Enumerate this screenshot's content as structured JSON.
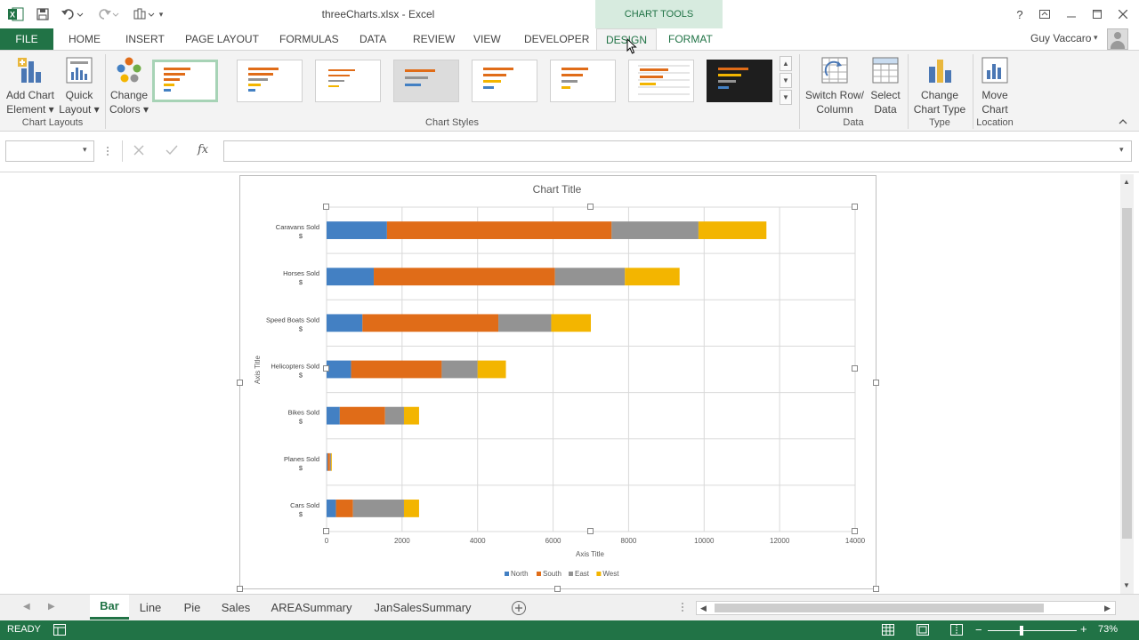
{
  "title_bar": {
    "document_title": "threeCharts.xlsx - Excel",
    "chart_tools_label": "CHART TOOLS",
    "help_label": "?",
    "app_icon": "excel-logo-icon"
  },
  "ribbon_tabs": [
    {
      "label": "FILE"
    },
    {
      "label": "HOME"
    },
    {
      "label": "INSERT"
    },
    {
      "label": "PAGE LAYOUT"
    },
    {
      "label": "FORMULAS"
    },
    {
      "label": "DATA"
    },
    {
      "label": "REVIEW"
    },
    {
      "label": "VIEW"
    },
    {
      "label": "DEVELOPER"
    },
    {
      "label": "DESIGN"
    },
    {
      "label": "FORMAT"
    }
  ],
  "user": {
    "name": "Guy Vaccaro"
  },
  "ribbon": {
    "add_chart_element": {
      "line1": "Add Chart",
      "line2": "Element ▾"
    },
    "quick_layout": {
      "line1": "Quick",
      "line2": "Layout ▾"
    },
    "change_colors": {
      "line1": "Change",
      "line2": "Colors ▾"
    },
    "switch_row_column": {
      "line1": "Switch Row/",
      "line2": "Column"
    },
    "select_data": {
      "line1": "Select",
      "line2": "Data"
    },
    "change_chart_type": {
      "line1": "Change",
      "line2": "Chart Type"
    },
    "move_chart": {
      "line1": "Move",
      "line2": "Chart"
    },
    "groups": {
      "chart_layouts": "Chart Layouts",
      "chart_styles": "Chart Styles",
      "data": "Data",
      "type": "Type",
      "location": "Location"
    }
  },
  "formula_bar": {
    "name_box_value": "",
    "formula_value": "",
    "fx_label": "fx"
  },
  "sheet_tabs": [
    {
      "label": "Bar",
      "active": true
    },
    {
      "label": "Line",
      "active": false
    },
    {
      "label": "Pie",
      "active": false
    },
    {
      "label": "Sales",
      "active": false
    },
    {
      "label": "AREASummary",
      "active": false
    },
    {
      "label": "JanSalesSummary",
      "active": false
    }
  ],
  "status_bar": {
    "status": "READY",
    "zoom": "73%"
  },
  "colors": {
    "excel_green": "#217346",
    "north": "#4380c3",
    "south": "#e06c18",
    "east": "#939393",
    "west": "#f3b500"
  },
  "chart_data": {
    "type": "bar",
    "orientation": "horizontal",
    "stacked": true,
    "title": "Chart Title",
    "xlabel": "Axis Title",
    "ylabel": "Axis Title",
    "xlim": [
      0,
      14000
    ],
    "xticks": [
      "0",
      "2000",
      "4000",
      "6000",
      "8000",
      "10000",
      "12000",
      "14000"
    ],
    "categories": [
      {
        "line1": "Caravans Sold",
        "line2": "$"
      },
      {
        "line1": "Horses Sold",
        "line2": "$"
      },
      {
        "line1": "Speed Boats Sold",
        "line2": "$"
      },
      {
        "line1": "Helicopters Sold",
        "line2": "$"
      },
      {
        "line1": "Bikes Sold",
        "line2": "$"
      },
      {
        "line1": "Planes Sold",
        "line2": "$"
      },
      {
        "line1": "Cars Sold",
        "line2": "$"
      }
    ],
    "series": [
      {
        "name": "North",
        "values": [
          1600,
          1250,
          950,
          650,
          350,
          30,
          250
        ]
      },
      {
        "name": "South",
        "values": [
          5950,
          4800,
          3600,
          2400,
          1200,
          60,
          450
        ]
      },
      {
        "name": "East",
        "values": [
          2300,
          1850,
          1400,
          950,
          500,
          30,
          1350
        ]
      },
      {
        "name": "West",
        "values": [
          1800,
          1450,
          1050,
          750,
          400,
          20,
          400
        ]
      }
    ],
    "grid": true,
    "legend_position": "bottom"
  }
}
